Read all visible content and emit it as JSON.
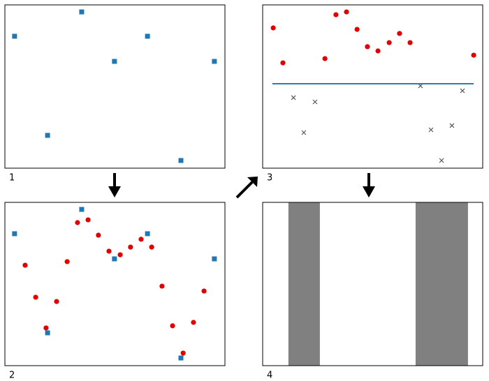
{
  "chart_data": [
    {
      "type": "scatter",
      "label": "1",
      "xlim": [
        0,
        100
      ],
      "ylim": [
        0,
        100
      ],
      "series": [
        {
          "kind": "square",
          "color": "#1f77b4",
          "x": [
            4.4,
            19.4,
            34.9,
            49.8,
            64.8,
            80.0,
            95.2
          ],
          "values": [
            80.8,
            20.1,
            95.7,
            65.4,
            80.8,
            4.7,
            65.4
          ]
        }
      ]
    },
    {
      "type": "scatter",
      "label": "2",
      "xlim": [
        0,
        100
      ],
      "ylim": [
        0,
        100
      ],
      "series": [
        {
          "kind": "square",
          "color": "#1f77b4",
          "x": [
            4.4,
            19.4,
            34.9,
            49.8,
            64.8,
            80.0,
            95.2
          ],
          "values": [
            80.8,
            20.1,
            95.7,
            65.4,
            80.8,
            4.7,
            65.4
          ]
        },
        {
          "kind": "circle",
          "color": "#e00000",
          "x": [
            9.2,
            14.0,
            18.7,
            23.5,
            28.3,
            33.0,
            37.8,
            42.5,
            47.3,
            52.4,
            57.1,
            61.9,
            66.7,
            71.4,
            76.2,
            81.0,
            85.7,
            90.5
          ],
          "values": [
            61.5,
            41.9,
            23.1,
            39.3,
            63.7,
            87.6,
            89.3,
            79.9,
            70.1,
            67.9,
            72.6,
            77.4,
            72.6,
            48.7,
            24.4,
            7.7,
            26.5,
            45.7
          ]
        }
      ]
    },
    {
      "type": "scatter",
      "label": "3",
      "xlim": [
        0,
        100
      ],
      "ylim": [
        0,
        100
      ],
      "series": [
        {
          "kind": "circle",
          "color": "#e00000",
          "x": [
            4.8,
            9.2,
            28.3,
            33.3,
            38.1,
            42.9,
            47.6,
            52.4,
            57.5,
            62.2,
            67.0,
            95.9
          ],
          "values": [
            85.9,
            64.5,
            67.1,
            94.0,
            95.7,
            85.0,
            74.4,
            71.8,
            76.9,
            82.5,
            76.9,
            69.2
          ]
        },
        {
          "kind": "cross",
          "color": "#555555",
          "x": [
            14.0,
            18.7,
            23.8,
            71.7,
            76.5,
            81.3,
            86.0,
            90.8
          ],
          "values": [
            43.2,
            21.8,
            40.6,
            50.4,
            23.5,
            4.7,
            26.1,
            47.4
          ]
        },
        {
          "kind": "line",
          "color": "#2a7fa8",
          "x": [
            4.4,
            95.9
          ],
          "values": [
            51.7,
            51.7
          ]
        }
      ]
    },
    {
      "type": "span",
      "label": "4",
      "xlim": [
        0,
        100
      ],
      "ylim": [
        0,
        100
      ],
      "color": "#808080",
      "spans": [
        [
          11.7,
          26.0
        ],
        [
          69.5,
          93.3
        ]
      ]
    }
  ]
}
